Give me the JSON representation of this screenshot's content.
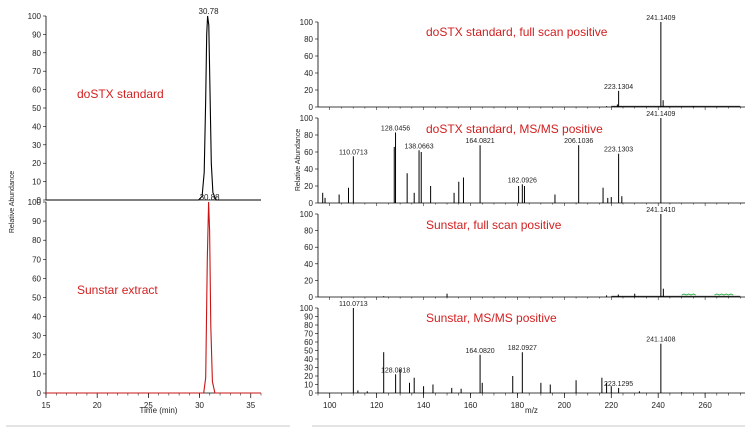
{
  "colors": {
    "black": "#000000",
    "red": "#c81414",
    "green": "#3cb450",
    "label_red": "#d21f1f"
  },
  "chart_data": [
    {
      "type": "line",
      "id": "chrom-top",
      "annotation": "doSTX standard",
      "peak_label": "30.78",
      "ylabel": "Relative Abundance",
      "xlim": [
        15,
        36
      ],
      "ylim": [
        0,
        100
      ],
      "y_ticks": [
        "0",
        "10",
        "20",
        "30",
        "40",
        "50",
        "60",
        "70",
        "80",
        "90",
        "100"
      ],
      "color": "black",
      "x": [
        15,
        29.9,
        30.25,
        30.45,
        30.6,
        30.7,
        30.78,
        30.9,
        31.0,
        31.15,
        31.3,
        31.6,
        36
      ],
      "y": [
        0,
        0,
        2,
        15,
        55,
        90,
        100,
        95,
        65,
        20,
        4,
        0,
        0
      ]
    },
    {
      "type": "line",
      "id": "chrom-bottom",
      "annotation": "Sunstar extract",
      "peak_label": "30.88",
      "ylabel": "Relative Abundance",
      "xlabel": "Time (min)",
      "xlim": [
        15,
        36
      ],
      "ylim": [
        0,
        100
      ],
      "x_ticks": [
        "15",
        "20",
        "25",
        "30",
        "35"
      ],
      "y_ticks": [
        "0",
        "10",
        "20",
        "30",
        "40",
        "50",
        "60",
        "70",
        "80",
        "90",
        "100"
      ],
      "color": "red",
      "x": [
        15,
        30.4,
        30.6,
        30.75,
        30.88,
        30.98,
        31.1,
        31.25,
        31.5,
        36
      ],
      "y": [
        0,
        0,
        8,
        70,
        100,
        85,
        35,
        6,
        0,
        0
      ],
      "x_axis_labels_shown": true
    },
    {
      "type": "bar",
      "id": "ms-a",
      "title": "doSTX standard, full scan positive",
      "xlim": [
        95,
        277
      ],
      "ylim": [
        0,
        100
      ],
      "y_ticks": [
        "0",
        "20",
        "40",
        "60",
        "80",
        "100"
      ],
      "peaks": [
        {
          "x": 241.1409,
          "y": 100,
          "label": "241.1409"
        },
        {
          "x": 223.1304,
          "y": 19,
          "label": "223.1304"
        },
        {
          "x": 242.1,
          "y": 8
        },
        {
          "x": 222.6,
          "y": 3
        },
        {
          "x": 218.0,
          "y": 1
        },
        {
          "x": 255.0,
          "y": 1
        }
      ]
    },
    {
      "type": "bar",
      "id": "ms-b",
      "title": "doSTX standard, MS/MS positive",
      "ylabel": "Relative Abundance",
      "top_label": "241.1409",
      "xlim": [
        95,
        277
      ],
      "ylim": [
        0,
        100
      ],
      "y_ticks": [
        "0",
        "20",
        "40",
        "60",
        "80",
        "100"
      ],
      "peaks": [
        {
          "x": 128.0456,
          "y": 83,
          "label": "128.0456"
        },
        {
          "x": 110.0713,
          "y": 55,
          "label": "110.0713"
        },
        {
          "x": 138.0663,
          "y": 62,
          "label": "138.0663"
        },
        {
          "x": 164.0821,
          "y": 68,
          "label": "164.0821"
        },
        {
          "x": 182.0926,
          "y": 22,
          "label": "182.0926"
        },
        {
          "x": 206.1036,
          "y": 68,
          "label": "206.1036"
        },
        {
          "x": 223.1303,
          "y": 58,
          "label": "223.1303"
        },
        {
          "x": 241.1409,
          "y": 100
        },
        {
          "x": 97,
          "y": 12
        },
        {
          "x": 98,
          "y": 6
        },
        {
          "x": 104,
          "y": 10
        },
        {
          "x": 108,
          "y": 18
        },
        {
          "x": 127.5,
          "y": 66
        },
        {
          "x": 133,
          "y": 35
        },
        {
          "x": 136,
          "y": 12
        },
        {
          "x": 139,
          "y": 60
        },
        {
          "x": 143,
          "y": 20
        },
        {
          "x": 153,
          "y": 12
        },
        {
          "x": 155,
          "y": 25
        },
        {
          "x": 157,
          "y": 30
        },
        {
          "x": 180.5,
          "y": 20
        },
        {
          "x": 183,
          "y": 20
        },
        {
          "x": 196,
          "y": 10
        },
        {
          "x": 216.5,
          "y": 18
        },
        {
          "x": 218.5,
          "y": 6
        },
        {
          "x": 220,
          "y": 7
        },
        {
          "x": 224.5,
          "y": 8
        }
      ]
    },
    {
      "type": "bar",
      "id": "ms-c",
      "title": "Sunstar, full scan positive",
      "top_label": "241.1410",
      "xlim": [
        95,
        277
      ],
      "ylim": [
        0,
        100
      ],
      "y_ticks": [
        "0",
        "20",
        "40",
        "60",
        "80",
        "100"
      ],
      "peaks": [
        {
          "x": 241.141,
          "y": 100
        },
        {
          "x": 242.2,
          "y": 10
        },
        {
          "x": 230,
          "y": 4
        },
        {
          "x": 223,
          "y": 3
        },
        {
          "x": 218,
          "y": 2
        },
        {
          "x": 150,
          "y": 4
        },
        {
          "x": 123,
          "y": 1
        }
      ],
      "noise": [
        {
          "from": 250,
          "to": 256,
          "y": 3
        },
        {
          "from": 264,
          "to": 272,
          "y": 3
        }
      ]
    },
    {
      "type": "bar",
      "id": "ms-d",
      "title": "Sunstar, MS/MS positive",
      "xlabel": "m/z",
      "xlim": [
        95,
        277
      ],
      "ylim": [
        0,
        100
      ],
      "x_ticks": [
        "100",
        "120",
        "140",
        "160",
        "180",
        "200",
        "220",
        "240",
        "260"
      ],
      "y_ticks": [
        "0",
        "10",
        "20",
        "30",
        "40",
        "50",
        "60",
        "70",
        "80",
        "90",
        "100"
      ],
      "peaks": [
        {
          "x": 110.0713,
          "y": 100,
          "label": "110.0713"
        },
        {
          "x": 128.0818,
          "y": 22,
          "label": "128.0818"
        },
        {
          "x": 164.082,
          "y": 45,
          "label": "164.0820"
        },
        {
          "x": 182.0927,
          "y": 48,
          "label": "182.0927"
        },
        {
          "x": 241.1408,
          "y": 58,
          "label": "241.1408"
        },
        {
          "x": 223.1295,
          "y": 6,
          "label": "223.1295"
        },
        {
          "x": 123,
          "y": 48
        },
        {
          "x": 130,
          "y": 28
        },
        {
          "x": 134,
          "y": 12
        },
        {
          "x": 136,
          "y": 18
        },
        {
          "x": 140,
          "y": 8
        },
        {
          "x": 144,
          "y": 10
        },
        {
          "x": 152,
          "y": 6
        },
        {
          "x": 156,
          "y": 5
        },
        {
          "x": 165,
          "y": 12
        },
        {
          "x": 178,
          "y": 20
        },
        {
          "x": 190,
          "y": 12
        },
        {
          "x": 194,
          "y": 10
        },
        {
          "x": 205,
          "y": 15
        },
        {
          "x": 216,
          "y": 18
        },
        {
          "x": 218,
          "y": 12
        },
        {
          "x": 220,
          "y": 8
        },
        {
          "x": 232,
          "y": 2
        },
        {
          "x": 250,
          "y": 1
        },
        {
          "x": 112,
          "y": 3
        },
        {
          "x": 116,
          "y": 2
        }
      ]
    }
  ]
}
